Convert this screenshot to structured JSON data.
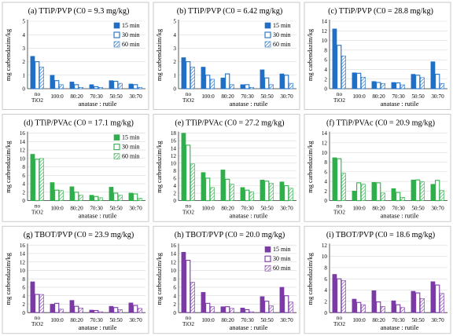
{
  "ylabel": "mg carbendazim/kg",
  "xlabel": "anatase : rutile",
  "categories": [
    "no TiO2",
    "100:0",
    "80:20",
    "70:30",
    "50:50",
    "30:70"
  ],
  "legend": [
    "15 min",
    "30 min",
    "60 min"
  ],
  "colors": {
    "blue": "#1f6fc6",
    "green": "#2eaf4b",
    "purple": "#7b3aa6"
  },
  "chart_data": [
    {
      "type": "bar",
      "title": "(a) TTiP/PVP (C0 = 9.3 mg/kg)",
      "color": "blue",
      "legend": true,
      "ylim": [
        0,
        5
      ],
      "yticks": [
        0,
        1,
        2,
        3,
        4,
        5
      ],
      "series": [
        {
          "name": "15 min",
          "values": [
            2.4,
            1.0,
            0.5,
            0.3,
            0.6,
            0.35
          ]
        },
        {
          "name": "30 min",
          "values": [
            2.0,
            0.6,
            0.3,
            0.15,
            0.55,
            0.3
          ]
        },
        {
          "name": "60 min",
          "values": [
            1.6,
            0.3,
            0.1,
            0.1,
            0.4,
            0.1
          ]
        }
      ]
    },
    {
      "type": "bar",
      "title": "(b) TTiP/PVP (C0 = 6.42 mg/kg)",
      "color": "blue",
      "legend": true,
      "ylim": [
        0,
        5
      ],
      "yticks": [
        0,
        1,
        2,
        3,
        4,
        5
      ],
      "series": [
        {
          "name": "15 min",
          "values": [
            2.3,
            1.6,
            0.8,
            0.3,
            1.4,
            1.1
          ]
        },
        {
          "name": "30 min",
          "values": [
            2.0,
            1.0,
            1.1,
            0.3,
            0.8,
            1.0
          ]
        },
        {
          "name": "60 min",
          "values": [
            1.6,
            0.7,
            0.3,
            0.1,
            0.3,
            0.4
          ]
        }
      ]
    },
    {
      "type": "bar",
      "title": "(c) TTiP/PVP (C0 = 28.8 mg/kg)",
      "color": "blue",
      "legend": false,
      "ylim": [
        0,
        14
      ],
      "yticks": [
        0,
        2,
        4,
        6,
        8,
        10,
        12,
        14
      ],
      "series": [
        {
          "name": "15 min",
          "values": [
            12.4,
            3.3,
            1.5,
            1.3,
            3.0,
            5.6
          ]
        },
        {
          "name": "30 min",
          "values": [
            9.0,
            3.2,
            1.3,
            1.2,
            2.8,
            3.0
          ]
        },
        {
          "name": "60 min",
          "values": [
            6.8,
            2.4,
            1.1,
            0.8,
            2.3,
            1.1
          ]
        }
      ]
    },
    {
      "type": "bar",
      "title": "(d) TTiP/PVAc (C0 = 17.1 mg/kg)",
      "color": "green",
      "legend": true,
      "ylim": [
        0,
        16
      ],
      "yticks": [
        0,
        2,
        4,
        6,
        8,
        10,
        12,
        14,
        16
      ],
      "series": [
        {
          "name": "15 min",
          "values": [
            11.0,
            4.3,
            3.3,
            1.3,
            3.2,
            1.8
          ]
        },
        {
          "name": "30 min",
          "values": [
            9.8,
            2.5,
            2.0,
            1.0,
            1.8,
            1.6
          ]
        },
        {
          "name": "60 min",
          "values": [
            10.0,
            2.4,
            1.3,
            0.7,
            1.3,
            0.6
          ]
        }
      ]
    },
    {
      "type": "bar",
      "title": "(e) TTiP/PVAc (C0 = 27.2 mg/kg)",
      "color": "green",
      "legend": false,
      "ylim": [
        0,
        18
      ],
      "yticks": [
        0,
        2,
        4,
        6,
        8,
        10,
        12,
        14,
        16,
        18
      ],
      "series": [
        {
          "name": "15 min",
          "values": [
            18.0,
            7.5,
            8.2,
            3.5,
            5.5,
            5.0
          ]
        },
        {
          "name": "30 min",
          "values": [
            14.8,
            6.0,
            5.7,
            2.8,
            5.2,
            4.0
          ]
        },
        {
          "name": "60 min",
          "values": [
            9.8,
            3.5,
            4.4,
            2.4,
            4.6,
            3.3
          ]
        }
      ]
    },
    {
      "type": "bar",
      "title": "(f) TTiP/PVAc (C0 = 20.9 mg/kg)",
      "color": "green",
      "legend": false,
      "ylim": [
        0,
        14
      ],
      "yticks": [
        0,
        2,
        4,
        6,
        8,
        10,
        12,
        14
      ],
      "series": [
        {
          "name": "15 min",
          "values": [
            8.9,
            2.0,
            3.8,
            2.5,
            4.3,
            3.4
          ]
        },
        {
          "name": "30 min",
          "values": [
            8.7,
            3.7,
            3.7,
            1.7,
            4.3,
            4.2
          ]
        },
        {
          "name": "60 min",
          "values": [
            5.7,
            3.4,
            1.6,
            0.7,
            3.9,
            2.1
          ]
        }
      ]
    },
    {
      "type": "bar",
      "title": "(g) TBOT/PVP (C0 = 23.9 mg/kg)",
      "color": "purple",
      "legend": false,
      "ylim": [
        0,
        16
      ],
      "yticks": [
        0,
        2,
        4,
        6,
        8,
        10,
        12,
        14,
        16
      ],
      "series": [
        {
          "name": "15 min",
          "values": [
            7.3,
            2.0,
            2.9,
            0.6,
            1.5,
            2.3
          ]
        },
        {
          "name": "30 min",
          "values": [
            4.3,
            2.2,
            1.5,
            0.5,
            1.2,
            1.7
          ]
        },
        {
          "name": "60 min",
          "values": [
            4.3,
            0.8,
            1.1,
            0.2,
            0.7,
            1.0
          ]
        }
      ]
    },
    {
      "type": "bar",
      "title": "(h) TBOT/PVP (C0 = 20.0 mg/kg)",
      "color": "purple",
      "legend": true,
      "ylim": [
        0,
        16
      ],
      "yticks": [
        0,
        2,
        4,
        6,
        8,
        10,
        12,
        14,
        16
      ],
      "series": [
        {
          "name": "15 min",
          "values": [
            14.3,
            4.8,
            1.4,
            1.1,
            3.8,
            6.0
          ]
        },
        {
          "name": "30 min",
          "values": [
            12.4,
            2.2,
            1.4,
            0.7,
            2.7,
            4.0
          ]
        },
        {
          "name": "60 min",
          "values": [
            7.2,
            1.4,
            1.0,
            0.2,
            1.6,
            2.5
          ]
        }
      ]
    },
    {
      "type": "bar",
      "title": "(i) TBOT/PVP (C0 = 18.6 mg/kg)",
      "color": "purple",
      "legend": false,
      "ylim": [
        0,
        12
      ],
      "yticks": [
        0,
        2,
        4,
        6,
        8,
        10,
        12
      ],
      "series": [
        {
          "name": "15 min",
          "values": [
            6.8,
            2.4,
            3.9,
            2.1,
            3.8,
            5.5
          ]
        },
        {
          "name": "30 min",
          "values": [
            6.0,
            1.8,
            1.9,
            1.4,
            3.5,
            4.9
          ]
        },
        {
          "name": "60 min",
          "values": [
            5.7,
            1.4,
            1.1,
            0.9,
            2.5,
            3.4
          ]
        }
      ]
    }
  ]
}
